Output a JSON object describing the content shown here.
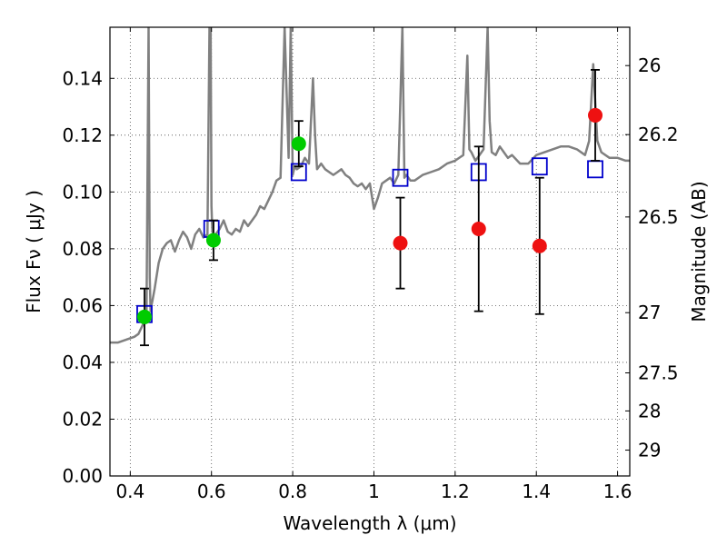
{
  "chart_data": {
    "type": "scatter",
    "xlabel": "Wavelength  λ (μm)",
    "ylabel": "Flux  Fν  ( μJy )",
    "ylabel_right": "Magnitude (AB)",
    "xlim": [
      0.35,
      1.63
    ],
    "ylim": [
      0.0,
      0.158
    ],
    "grid": true,
    "x_ticks": [
      0.4,
      0.6,
      0.8,
      1.0,
      1.2,
      1.4,
      1.6
    ],
    "x_tick_labels": [
      "0.4",
      "0.6",
      "0.8",
      "1",
      "1.2",
      "1.4",
      "1.6"
    ],
    "y_ticks": [
      0.0,
      0.02,
      0.04,
      0.06,
      0.08,
      0.1,
      0.12,
      0.14
    ],
    "y_tick_labels": [
      "0.00",
      "0.02",
      "0.04",
      "0.06",
      "0.08",
      "0.10",
      "0.12",
      "0.14"
    ],
    "right_ticks": [
      {
        "label": "26",
        "flux": 0.1445
      },
      {
        "label": "26.2",
        "flux": 0.1202
      },
      {
        "label": "26.5",
        "flux": 0.0912
      },
      {
        "label": "27",
        "flux": 0.0575
      },
      {
        "label": "27.5",
        "flux": 0.0363
      },
      {
        "label": "28",
        "flux": 0.0229
      },
      {
        "label": "29",
        "flux": 0.0091
      }
    ],
    "series": [
      {
        "kind": "line",
        "color": "#808080",
        "x": [
          0.35,
          0.37,
          0.39,
          0.41,
          0.42,
          0.43,
          0.44,
          0.445,
          0.448,
          0.45,
          0.452,
          0.455,
          0.46,
          0.47,
          0.48,
          0.49,
          0.5,
          0.51,
          0.52,
          0.53,
          0.54,
          0.55,
          0.56,
          0.57,
          0.58,
          0.59,
          0.595,
          0.598,
          0.6,
          0.602,
          0.605,
          0.61,
          0.62,
          0.63,
          0.64,
          0.65,
          0.66,
          0.67,
          0.68,
          0.69,
          0.7,
          0.71,
          0.72,
          0.73,
          0.74,
          0.75,
          0.76,
          0.77,
          0.78,
          0.79,
          0.795,
          0.8,
          0.805,
          0.81,
          0.82,
          0.83,
          0.84,
          0.85,
          0.855,
          0.86,
          0.87,
          0.88,
          0.89,
          0.9,
          0.91,
          0.92,
          0.93,
          0.94,
          0.95,
          0.96,
          0.97,
          0.98,
          0.99,
          1.0,
          1.01,
          1.02,
          1.03,
          1.04,
          1.05,
          1.06,
          1.07,
          1.075,
          1.08,
          1.09,
          1.1,
          1.12,
          1.14,
          1.16,
          1.18,
          1.2,
          1.22,
          1.23,
          1.235,
          1.24,
          1.25,
          1.26,
          1.27,
          1.28,
          1.285,
          1.29,
          1.3,
          1.31,
          1.32,
          1.33,
          1.34,
          1.36,
          1.38,
          1.4,
          1.42,
          1.44,
          1.46,
          1.48,
          1.5,
          1.52,
          1.53,
          1.54,
          1.55,
          1.56,
          1.58,
          1.6,
          1.62,
          1.63
        ],
        "y": [
          0.047,
          0.047,
          0.048,
          0.049,
          0.05,
          0.053,
          0.056,
          0.158,
          0.07,
          0.058,
          0.06,
          0.062,
          0.066,
          0.075,
          0.08,
          0.082,
          0.083,
          0.079,
          0.083,
          0.086,
          0.084,
          0.08,
          0.085,
          0.087,
          0.084,
          0.085,
          0.158,
          0.158,
          0.095,
          0.087,
          0.082,
          0.085,
          0.087,
          0.09,
          0.086,
          0.085,
          0.087,
          0.086,
          0.09,
          0.088,
          0.09,
          0.092,
          0.095,
          0.094,
          0.097,
          0.1,
          0.104,
          0.105,
          0.158,
          0.112,
          0.158,
          0.106,
          0.109,
          0.108,
          0.109,
          0.112,
          0.11,
          0.14,
          0.12,
          0.108,
          0.11,
          0.108,
          0.107,
          0.106,
          0.107,
          0.108,
          0.106,
          0.105,
          0.103,
          0.102,
          0.103,
          0.101,
          0.103,
          0.094,
          0.098,
          0.103,
          0.104,
          0.105,
          0.103,
          0.106,
          0.158,
          0.105,
          0.106,
          0.104,
          0.104,
          0.106,
          0.107,
          0.108,
          0.11,
          0.111,
          0.113,
          0.148,
          0.115,
          0.114,
          0.111,
          0.113,
          0.115,
          0.158,
          0.125,
          0.114,
          0.113,
          0.116,
          0.114,
          0.112,
          0.113,
          0.11,
          0.11,
          0.113,
          0.114,
          0.115,
          0.116,
          0.116,
          0.115,
          0.113,
          0.118,
          0.145,
          0.118,
          0.114,
          0.112,
          0.112,
          0.111,
          0.111
        ]
      },
      {
        "kind": "points",
        "marker": "open-square",
        "color": "#0000cc",
        "x": [
          0.435,
          0.6,
          0.815,
          1.065,
          1.258,
          1.408,
          1.545
        ],
        "y": [
          0.057,
          0.087,
          0.107,
          0.105,
          0.107,
          0.109,
          0.108
        ]
      },
      {
        "kind": "points",
        "marker": "filled-circle",
        "color": "#00cc00",
        "x": [
          0.435,
          0.605,
          0.815
        ],
        "y": [
          0.056,
          0.083,
          0.117
        ],
        "err": [
          0.01,
          0.007,
          0.008
        ]
      },
      {
        "kind": "points",
        "marker": "filled-circle",
        "color": "#ee1111",
        "x": [
          1.065,
          1.258,
          1.408,
          1.545
        ],
        "y": [
          0.082,
          0.087,
          0.081,
          0.127
        ],
        "err": [
          0.016,
          0.029,
          0.024,
          0.016
        ]
      }
    ]
  }
}
